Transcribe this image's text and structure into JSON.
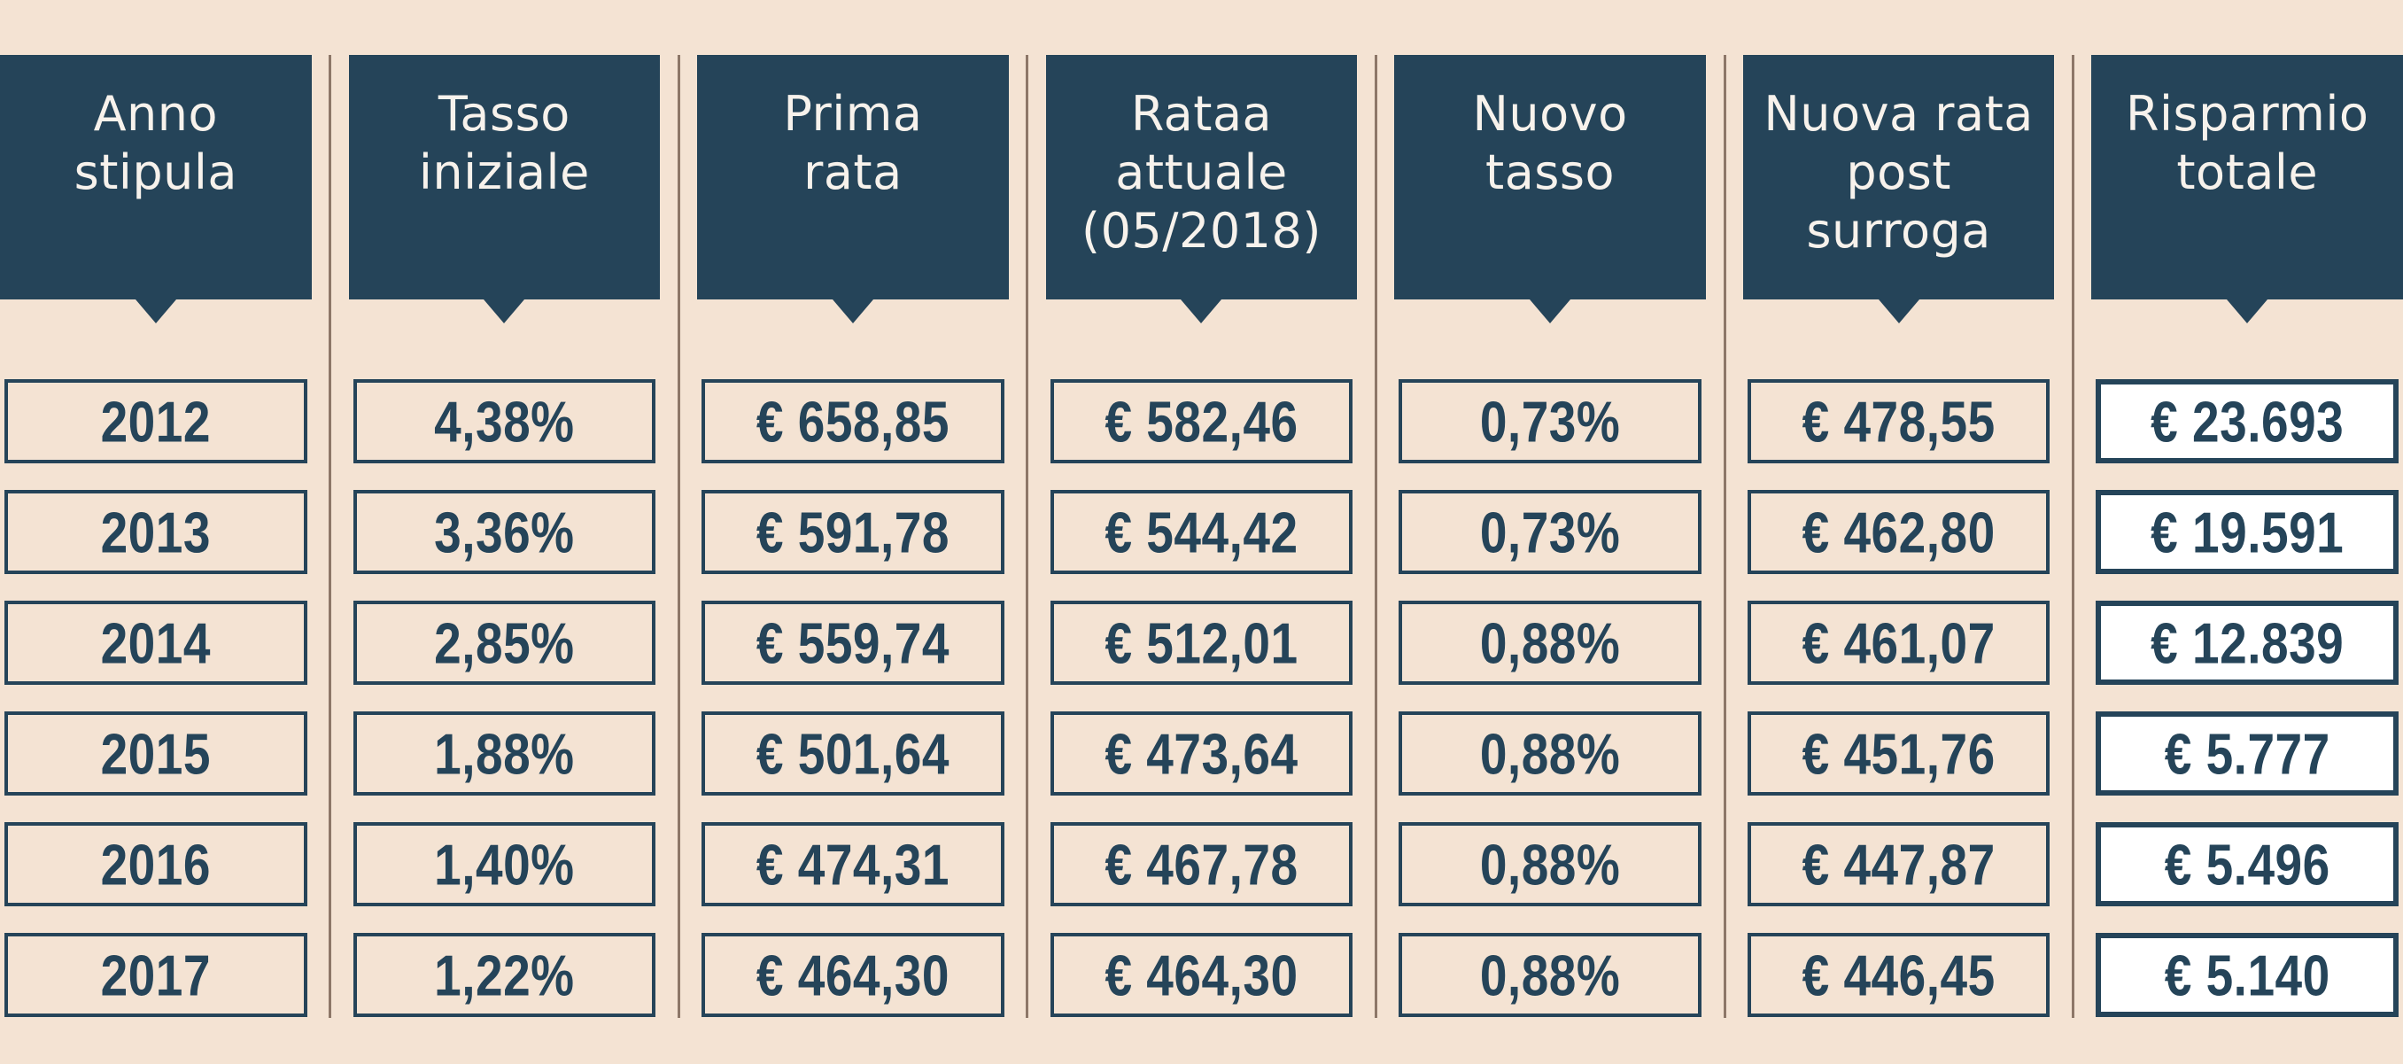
{
  "colors": {
    "bg": "#f4e3d3",
    "navy": "#254459",
    "header-text": "#f7f2ec",
    "divider": "#8d7768",
    "white-cell": "#ffffff"
  },
  "table": {
    "header_labels": [
      "Anno\nstipula",
      "Tasso\niniziale",
      "Prima\nrata",
      "Rataa\nattuale\n(05/2018)",
      "Nuovo\ntasso",
      "Nuova rata\npost\nsurroga",
      "Risparmio\ntotale"
    ]
  },
  "chart_data": {
    "type": "table",
    "columns": [
      "Anno stipula",
      "Tasso iniziale",
      "Prima rata",
      "Rataa attuale (05/2018)",
      "Nuovo tasso",
      "Nuova rata post surroga",
      "Risparmio totale"
    ],
    "rows": [
      [
        "2012",
        "4,38%",
        "€ 658,85",
        "€ 582,46",
        "0,73%",
        "€ 478,55",
        "€ 23.693"
      ],
      [
        "2013",
        "3,36%",
        "€ 591,78",
        "€ 544,42",
        "0,73%",
        "€ 462,80",
        "€ 19.591"
      ],
      [
        "2014",
        "2,85%",
        "€ 559,74",
        "€ 512,01",
        "0,88%",
        "€ 461,07",
        "€ 12.839"
      ],
      [
        "2015",
        "1,88%",
        "€ 501,64",
        "€ 473,64",
        "0,88%",
        "€ 451,76",
        "€ 5.777"
      ],
      [
        "2016",
        "1,40%",
        "€ 474,31",
        "€ 467,78",
        "0,88%",
        "€ 447,87",
        "€ 5.496"
      ],
      [
        "2017",
        "1,22%",
        "€ 464,30",
        "€ 464,30",
        "0,88%",
        "€ 446,45",
        "€ 5.140"
      ]
    ]
  }
}
